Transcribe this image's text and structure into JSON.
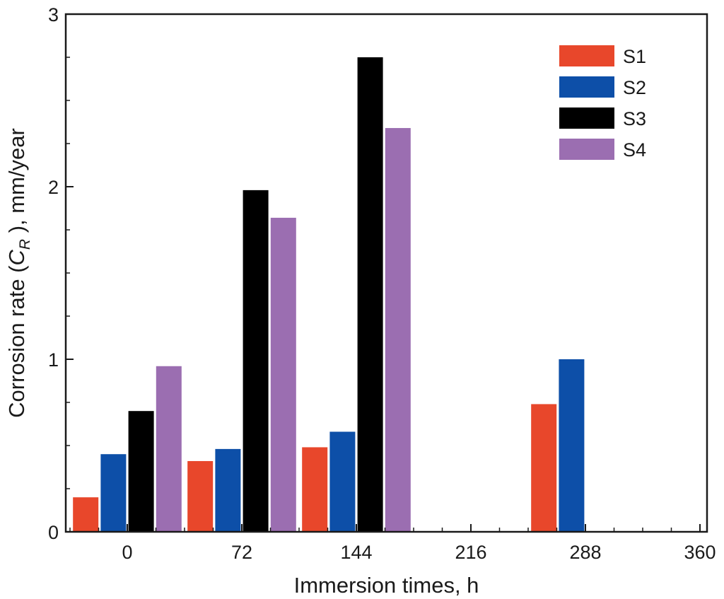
{
  "chart_data": {
    "type": "bar",
    "title": "",
    "xlabel": "Immersion times, h",
    "ylabel_prefix": "Corrosion rate (",
    "ylabel_var": "C",
    "ylabel_sub": "R",
    "ylabel_suffix": " ), mm/year",
    "x_ticks": [
      "0",
      "72",
      "144",
      "216",
      "288",
      "360"
    ],
    "y_ticks": [
      "0",
      "1",
      "2",
      "3"
    ],
    "ylim": [
      0,
      3
    ],
    "categories": [
      "0",
      "72",
      "144",
      "216",
      "288",
      "360"
    ],
    "series": [
      {
        "name": "S1",
        "color": "#e8472b",
        "values": [
          0.2,
          0.41,
          0.49,
          null,
          0.74,
          null
        ]
      },
      {
        "name": "S2",
        "color": "#0d4fa8",
        "values": [
          0.45,
          0.48,
          0.58,
          null,
          1.0,
          null
        ]
      },
      {
        "name": "S3",
        "color": "#000000",
        "values": [
          0.7,
          1.98,
          2.75,
          null,
          null,
          null
        ]
      },
      {
        "name": "S4",
        "color": "#9b6eb1",
        "values": [
          0.96,
          1.82,
          2.34,
          null,
          null,
          null
        ]
      }
    ],
    "legend_position": "top-right",
    "grid": false
  }
}
